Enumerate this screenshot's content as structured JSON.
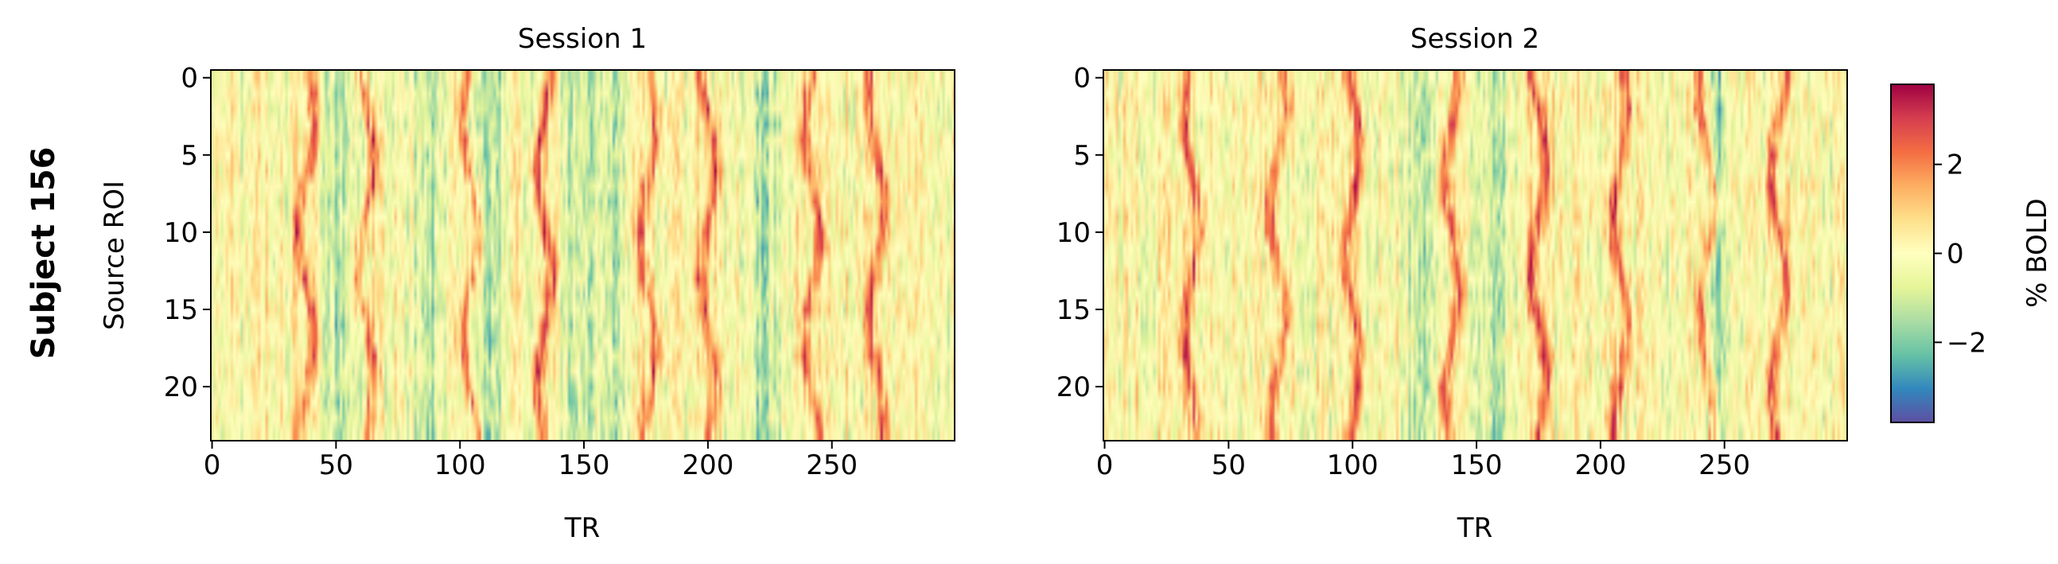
{
  "figure": {
    "row_label": "Subject 156"
  },
  "chart_data": [
    {
      "type": "heatmap",
      "title": "Session 1",
      "xlabel": "TR",
      "ylabel": "Source ROI",
      "x_range": [
        0,
        299
      ],
      "y_range": [
        0,
        23
      ],
      "xticks": [
        0,
        50,
        100,
        150,
        200,
        250
      ],
      "yticks": [
        0,
        5,
        10,
        15,
        20
      ],
      "n_rois": 24,
      "n_trs": 300,
      "colormap": "Spectral_r",
      "value_range": [
        -3.8,
        3.8
      ],
      "hot_trs": [
        38,
        62,
        104,
        134,
        176,
        200,
        242,
        268
      ],
      "cold_trs": [
        52,
        88,
        112,
        148,
        162,
        222
      ]
    },
    {
      "type": "heatmap",
      "title": "Session 2",
      "xlabel": "TR",
      "ylabel": "",
      "x_range": [
        0,
        299
      ],
      "y_range": [
        0,
        23
      ],
      "xticks": [
        0,
        50,
        100,
        150,
        200,
        250
      ],
      "yticks": [
        0,
        5,
        10,
        15,
        20
      ],
      "n_rois": 24,
      "n_trs": 300,
      "colormap": "Spectral_r",
      "value_range": [
        -3.8,
        3.8
      ],
      "hot_trs": [
        35,
        70,
        100,
        140,
        175,
        208,
        243,
        272
      ],
      "cold_trs": [
        128,
        158,
        248
      ]
    }
  ],
  "colorbar": {
    "label": "% BOLD",
    "ticks": [
      -2,
      0,
      2
    ],
    "tick_labels": [
      "−2",
      "0",
      "2"
    ],
    "range": [
      -3.8,
      3.8
    ]
  }
}
